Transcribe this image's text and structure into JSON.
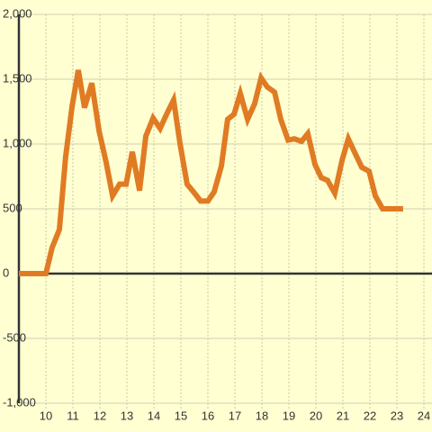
{
  "chart_data": {
    "type": "line",
    "x": [
      9.0,
      10.0,
      10.23,
      10.5,
      10.73,
      10.97,
      11.2,
      11.43,
      11.7,
      11.97,
      12.23,
      12.47,
      12.73,
      12.97,
      13.2,
      13.47,
      13.7,
      13.97,
      14.23,
      14.47,
      14.73,
      14.97,
      15.23,
      15.47,
      15.73,
      16.0,
      16.23,
      16.5,
      16.73,
      16.97,
      17.2,
      17.47,
      17.73,
      17.97,
      18.2,
      18.47,
      18.7,
      18.97,
      19.2,
      19.47,
      19.7,
      19.97,
      20.2,
      20.43,
      20.7,
      20.97,
      21.2,
      21.47,
      21.7,
      21.97,
      22.2,
      22.47,
      22.7,
      22.97,
      23.23
    ],
    "series": [
      {
        "color": "#e07b24",
        "values": [
          0,
          0,
          200,
          340,
          900,
          1290,
          1570,
          1280,
          1470,
          1100,
          860,
          600,
          690,
          690,
          940,
          640,
          1060,
          1200,
          1120,
          1230,
          1340,
          1000,
          690,
          630,
          560,
          560,
          630,
          830,
          1190,
          1230,
          1390,
          1190,
          1310,
          1510,
          1440,
          1400,
          1190,
          1030,
          1040,
          1020,
          1080,
          840,
          740,
          720,
          620,
          875,
          1040,
          920,
          820,
          790,
          600,
          500,
          500,
          500,
          500
        ]
      }
    ],
    "xlim": [
      9,
      24.3
    ],
    "xticks": [
      10,
      11,
      12,
      13,
      14,
      15,
      16,
      17,
      18,
      19,
      20,
      21,
      22,
      23,
      24
    ],
    "ylim": [
      -1000,
      2000
    ],
    "yticks": [
      {
        "value": -1000,
        "label": "-1,000"
      },
      -500,
      0,
      500,
      {
        "value": 1000,
        "label": "1,000"
      },
      {
        "value": 1500,
        "label": "1,500"
      },
      {
        "value": 2000,
        "label": "2,000"
      }
    ],
    "grid": true
  }
}
